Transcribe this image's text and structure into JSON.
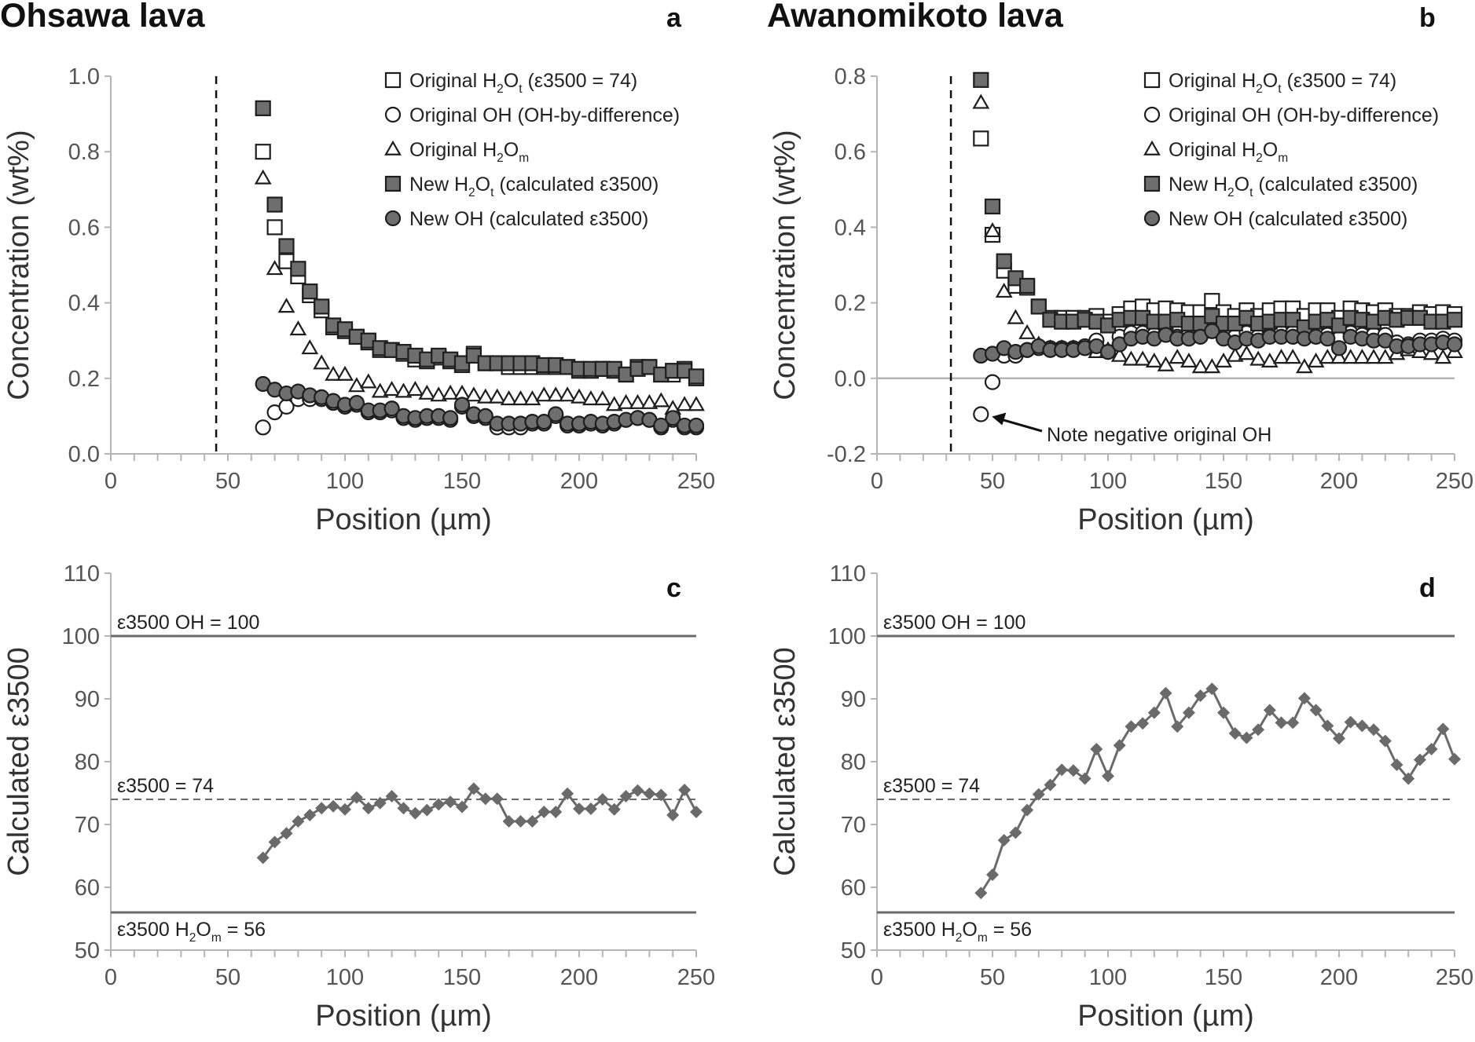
{
  "chart_data": [
    {
      "panel": "a",
      "type": "scatter",
      "title": "Ohsawa lava",
      "xlabel": "Position (µm)",
      "ylabel": "Concentration (wt%)",
      "xlim": [
        0,
        250
      ],
      "ylim": [
        0,
        1.0
      ],
      "xticks": [
        "0",
        "50",
        "100",
        "150",
        "200",
        "250"
      ],
      "yticks": [
        "0.0",
        "0.2",
        "0.4",
        "0.6",
        "0.8",
        "1.0"
      ],
      "legend_position": "top-right",
      "vertical_dashed_line_x": 45,
      "x": [
        65,
        70,
        75,
        80,
        85,
        90,
        95,
        100,
        105,
        110,
        115,
        120,
        125,
        130,
        135,
        140,
        145,
        150,
        155,
        160,
        165,
        170,
        175,
        180,
        185,
        190,
        195,
        200,
        205,
        210,
        215,
        220,
        225,
        230,
        235,
        240,
        245,
        250
      ],
      "series": [
        {
          "name": [
            {
              "t": "Original H"
            },
            {
              "sub": "2"
            },
            {
              "t": "O"
            },
            {
              "sub": "t"
            },
            {
              "t": " (ε3500 = 74)"
            }
          ],
          "marker": "square-open",
          "values": [
            0.8,
            0.6,
            0.51,
            0.47,
            0.42,
            0.38,
            0.335,
            0.325,
            0.31,
            0.295,
            0.275,
            0.275,
            0.265,
            0.25,
            0.245,
            0.255,
            0.245,
            0.235,
            0.265,
            0.24,
            0.24,
            0.23,
            0.23,
            0.23,
            0.23,
            0.23,
            0.23,
            0.22,
            0.22,
            0.225,
            0.22,
            0.21,
            0.23,
            0.23,
            0.21,
            0.21,
            0.225,
            0.2
          ]
        },
        {
          "name": [
            {
              "t": "Original OH (OH-by-difference)"
            }
          ],
          "marker": "circle-open",
          "values": [
            0.07,
            0.11,
            0.125,
            0.145,
            0.145,
            0.145,
            0.135,
            0.125,
            0.13,
            0.11,
            0.11,
            0.115,
            0.095,
            0.09,
            0.095,
            0.095,
            0.09,
            0.125,
            0.1,
            0.095,
            0.07,
            0.07,
            0.07,
            0.08,
            0.08,
            0.1,
            0.075,
            0.075,
            0.08,
            0.075,
            0.08,
            0.09,
            0.095,
            0.09,
            0.07,
            0.09,
            0.07,
            0.07
          ]
        },
        {
          "name": [
            {
              "t": "Original H"
            },
            {
              "sub": "2"
            },
            {
              "t": "O"
            },
            {
              "sub": "m"
            }
          ],
          "marker": "triangle-open",
          "values": [
            0.73,
            0.49,
            0.39,
            0.33,
            0.28,
            0.24,
            0.21,
            0.21,
            0.18,
            0.19,
            0.165,
            0.17,
            0.165,
            0.17,
            0.16,
            0.155,
            0.16,
            0.16,
            0.155,
            0.15,
            0.15,
            0.145,
            0.145,
            0.145,
            0.155,
            0.155,
            0.155,
            0.15,
            0.145,
            0.145,
            0.13,
            0.135,
            0.135,
            0.135,
            0.14,
            0.12,
            0.13,
            0.13
          ]
        },
        {
          "name": [
            {
              "t": "New H"
            },
            {
              "sub": "2"
            },
            {
              "t": "O"
            },
            {
              "sub": "t"
            },
            {
              "t": " (calculated ε3500)"
            }
          ],
          "marker": "square-filled",
          "values": [
            0.915,
            0.66,
            0.55,
            0.49,
            0.43,
            0.39,
            0.34,
            0.33,
            0.31,
            0.3,
            0.28,
            0.275,
            0.27,
            0.26,
            0.25,
            0.26,
            0.25,
            0.24,
            0.26,
            0.24,
            0.24,
            0.24,
            0.24,
            0.24,
            0.235,
            0.235,
            0.23,
            0.225,
            0.225,
            0.225,
            0.225,
            0.21,
            0.225,
            0.23,
            0.21,
            0.22,
            0.22,
            0.205
          ]
        },
        {
          "name": [
            {
              "t": "New OH (calculated ε3500)"
            }
          ],
          "marker": "circle-filled",
          "values": [
            0.185,
            0.17,
            0.16,
            0.165,
            0.155,
            0.15,
            0.14,
            0.13,
            0.135,
            0.115,
            0.115,
            0.12,
            0.1,
            0.095,
            0.1,
            0.1,
            0.095,
            0.13,
            0.105,
            0.1,
            0.08,
            0.08,
            0.08,
            0.085,
            0.085,
            0.105,
            0.08,
            0.08,
            0.085,
            0.08,
            0.085,
            0.09,
            0.095,
            0.09,
            0.075,
            0.095,
            0.075,
            0.075
          ]
        }
      ]
    },
    {
      "panel": "b",
      "type": "scatter",
      "title": "Awanomikoto lava",
      "xlabel": "Position (µm)",
      "ylabel": "Concentration (wt%)",
      "xlim": [
        0,
        250
      ],
      "ylim": [
        -0.2,
        0.8
      ],
      "xticks": [
        "0",
        "50",
        "100",
        "150",
        "200",
        "250"
      ],
      "yticks": [
        "-0.2",
        "0.0",
        "0.2",
        "0.4",
        "0.6",
        "0.8"
      ],
      "legend_position": "top-right",
      "vertical_dashed_line_x": 32,
      "zero_line": true,
      "annotation": "Note negative original OH",
      "x": [
        45,
        50,
        55,
        60,
        65,
        70,
        75,
        80,
        85,
        90,
        95,
        100,
        105,
        110,
        115,
        120,
        125,
        130,
        135,
        140,
        145,
        150,
        155,
        160,
        165,
        170,
        175,
        180,
        185,
        190,
        195,
        200,
        205,
        210,
        215,
        220,
        225,
        230,
        235,
        240,
        245,
        250
      ],
      "series": [
        {
          "name": [
            {
              "t": "Original H"
            },
            {
              "sub": "2"
            },
            {
              "t": "O"
            },
            {
              "sub": "t"
            },
            {
              "t": " (ε3500 = 74)"
            }
          ],
          "marker": "square-open",
          "values": [
            0.635,
            0.38,
            0.285,
            0.245,
            0.24,
            0.19,
            0.16,
            0.16,
            0.16,
            0.16,
            0.165,
            0.15,
            0.17,
            0.185,
            0.19,
            0.18,
            0.185,
            0.18,
            0.175,
            0.175,
            0.205,
            0.175,
            0.165,
            0.18,
            0.165,
            0.18,
            0.185,
            0.185,
            0.165,
            0.18,
            0.18,
            0.16,
            0.185,
            0.18,
            0.175,
            0.18,
            0.165,
            0.165,
            0.175,
            0.17,
            0.175,
            0.17
          ]
        },
        {
          "name": [
            {
              "t": "Original OH (OH-by-difference)"
            }
          ],
          "marker": "circle-open",
          "values": [
            -0.095,
            -0.01,
            0.06,
            0.06,
            0.075,
            0.08,
            0.08,
            0.08,
            0.08,
            0.085,
            0.1,
            0.07,
            0.11,
            0.12,
            0.12,
            0.115,
            0.12,
            0.11,
            0.115,
            0.115,
            0.125,
            0.115,
            0.11,
            0.12,
            0.11,
            0.12,
            0.12,
            0.12,
            0.11,
            0.12,
            0.115,
            0.105,
            0.12,
            0.115,
            0.115,
            0.115,
            0.095,
            0.09,
            0.1,
            0.1,
            0.105,
            0.1
          ]
        },
        {
          "name": [
            {
              "t": "Original H"
            },
            {
              "sub": "2"
            },
            {
              "t": "O"
            },
            {
              "sub": "m"
            }
          ],
          "marker": "triangle-open",
          "values": [
            0.73,
            0.39,
            0.23,
            0.16,
            0.12,
            0.09,
            0.08,
            0.08,
            0.08,
            0.08,
            0.07,
            0.075,
            0.06,
            0.05,
            0.05,
            0.045,
            0.035,
            0.055,
            0.045,
            0.03,
            0.03,
            0.045,
            0.06,
            0.065,
            0.05,
            0.045,
            0.055,
            0.055,
            0.03,
            0.045,
            0.055,
            0.055,
            0.055,
            0.055,
            0.055,
            0.055,
            0.065,
            0.075,
            0.07,
            0.065,
            0.055,
            0.07
          ]
        },
        {
          "name": [
            {
              "t": "New H"
            },
            {
              "sub": "2"
            },
            {
              "t": "O"
            },
            {
              "sub": "t"
            },
            {
              "t": " (calculated ε3500)"
            }
          ],
          "marker": "square-filled",
          "values": [
            0.79,
            0.455,
            0.31,
            0.265,
            0.245,
            0.19,
            0.155,
            0.15,
            0.15,
            0.155,
            0.15,
            0.14,
            0.155,
            0.16,
            0.16,
            0.15,
            0.15,
            0.155,
            0.145,
            0.145,
            0.165,
            0.145,
            0.145,
            0.16,
            0.145,
            0.15,
            0.155,
            0.155,
            0.135,
            0.15,
            0.155,
            0.14,
            0.16,
            0.155,
            0.15,
            0.16,
            0.155,
            0.16,
            0.16,
            0.15,
            0.15,
            0.155
          ]
        },
        {
          "name": [
            {
              "t": "New OH (calculated ε3500)"
            }
          ],
          "marker": "circle-filled",
          "values": [
            0.06,
            0.065,
            0.08,
            0.07,
            0.075,
            0.085,
            0.075,
            0.075,
            0.075,
            0.08,
            0.085,
            0.07,
            0.09,
            0.105,
            0.11,
            0.105,
            0.115,
            0.105,
            0.105,
            0.11,
            0.125,
            0.105,
            0.095,
            0.105,
            0.1,
            0.11,
            0.11,
            0.11,
            0.105,
            0.11,
            0.105,
            0.08,
            0.11,
            0.105,
            0.1,
            0.1,
            0.085,
            0.085,
            0.09,
            0.09,
            0.095,
            0.09
          ]
        }
      ]
    },
    {
      "panel": "c",
      "type": "line",
      "xlabel": "Position (µm)",
      "ylabel": "Calculated ε3500",
      "xlim": [
        0,
        250
      ],
      "ylim": [
        50,
        110
      ],
      "xticks": [
        "0",
        "50",
        "100",
        "150",
        "200",
        "250"
      ],
      "yticks": [
        "50",
        "60",
        "70",
        "80",
        "90",
        "100",
        "110"
      ],
      "reference_lines": [
        {
          "value": 100,
          "style": "solid",
          "label": [
            {
              "t": "ε3500 OH = 100"
            }
          ]
        },
        {
          "value": 74,
          "style": "dashed",
          "label": [
            {
              "t": "ε3500 = 74"
            }
          ]
        },
        {
          "value": 56,
          "style": "solid",
          "label": [
            {
              "t": "ε3500 H"
            },
            {
              "sub": "2"
            },
            {
              "t": "O"
            },
            {
              "sub": "m"
            },
            {
              "t": " = 56"
            }
          ]
        }
      ],
      "x": [
        65,
        70,
        75,
        80,
        85,
        90,
        95,
        100,
        105,
        110,
        115,
        120,
        125,
        130,
        135,
        140,
        145,
        150,
        155,
        160,
        165,
        170,
        175,
        180,
        185,
        190,
        195,
        200,
        205,
        210,
        215,
        220,
        225,
        230,
        235,
        240,
        245,
        250
      ],
      "values": [
        64.7,
        67.2,
        68.6,
        70.5,
        71.5,
        72.6,
        72.9,
        72.4,
        74.3,
        72.6,
        73.4,
        74.5,
        72.6,
        71.8,
        72.3,
        73.2,
        73.6,
        72.8,
        75.7,
        74.1,
        74.1,
        70.5,
        70.5,
        70.5,
        72.0,
        72.0,
        74.9,
        72.5,
        72.5,
        74.0,
        72.4,
        74.5,
        75.4,
        74.9,
        74.7,
        71.5,
        75.5,
        72.0
      ]
    },
    {
      "panel": "d",
      "type": "line",
      "xlabel": "Position (µm)",
      "ylabel": "Calculated ε3500",
      "xlim": [
        0,
        250
      ],
      "ylim": [
        50,
        110
      ],
      "xticks": [
        "0",
        "50",
        "100",
        "150",
        "200",
        "250"
      ],
      "yticks": [
        "50",
        "60",
        "70",
        "80",
        "90",
        "100",
        "110"
      ],
      "reference_lines": [
        {
          "value": 100,
          "style": "solid",
          "label": [
            {
              "t": "ε3500 OH = 100"
            }
          ]
        },
        {
          "value": 74,
          "style": "dashed",
          "label": [
            {
              "t": "ε3500 = 74"
            }
          ]
        },
        {
          "value": 56,
          "style": "solid",
          "label": [
            {
              "t": "ε3500 H"
            },
            {
              "sub": "2"
            },
            {
              "t": "O"
            },
            {
              "sub": "m"
            },
            {
              "t": " = 56"
            }
          ]
        }
      ],
      "x": [
        45,
        50,
        55,
        60,
        65,
        70,
        75,
        80,
        85,
        90,
        95,
        100,
        105,
        110,
        115,
        120,
        125,
        130,
        135,
        140,
        145,
        150,
        155,
        160,
        165,
        170,
        175,
        180,
        185,
        190,
        195,
        200,
        205,
        210,
        215,
        220,
        225,
        230,
        235,
        240,
        245,
        250
      ],
      "values": [
        59.1,
        62.0,
        67.5,
        68.7,
        72.3,
        74.8,
        76.3,
        78.7,
        78.6,
        77.3,
        82.0,
        77.7,
        82.6,
        85.6,
        86.1,
        87.8,
        90.9,
        85.6,
        87.8,
        90.5,
        91.6,
        87.8,
        84.5,
        83.8,
        85.1,
        88.2,
        86.2,
        86.2,
        90.1,
        88.2,
        85.7,
        83.7,
        86.3,
        85.7,
        85.1,
        83.3,
        79.5,
        77.3,
        80.3,
        82.0,
        85.2,
        80.4
      ]
    }
  ],
  "colors": {
    "marker_fill": "#6e6e6e",
    "marker_stroke": "#1e1e1e",
    "axis": "#b5b5b5",
    "ref_line": "#6a6a6a",
    "series_line": "#6a6a6a"
  }
}
